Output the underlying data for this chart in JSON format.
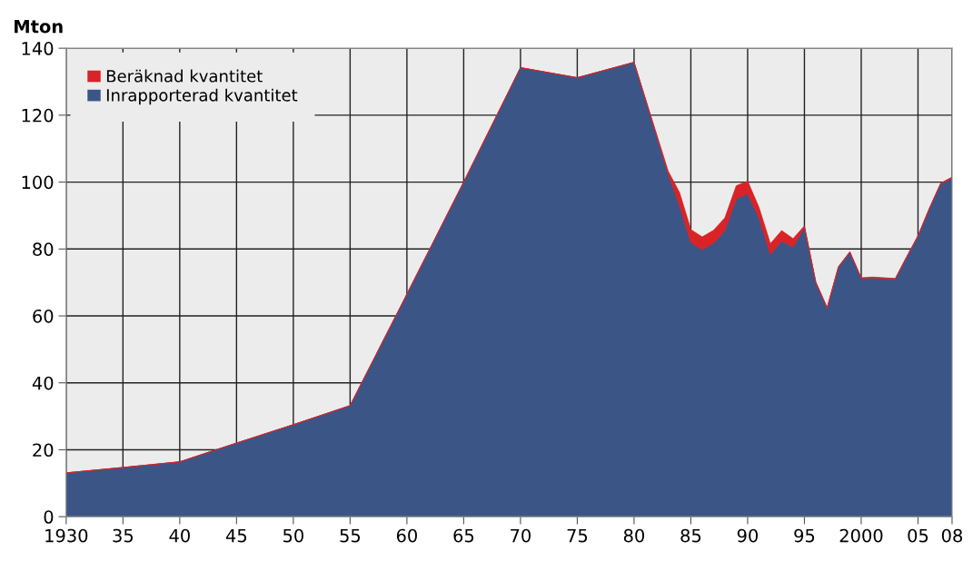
{
  "chart_data": {
    "type": "area",
    "stacked": true,
    "ylabel": "Mton",
    "x": [
      1930,
      1935,
      1940,
      1945,
      1950,
      1955,
      1960,
      1965,
      1970,
      1975,
      1980,
      1983,
      1984,
      1985,
      1986,
      1987,
      1988,
      1989,
      1990,
      1991,
      1992,
      1993,
      1994,
      1995,
      1996,
      1997,
      1998,
      1999,
      2000,
      2001,
      2002,
      2003,
      2004,
      2005,
      2006,
      2007,
      2008
    ],
    "series": [
      {
        "name": "Inrapporterad kvantitet",
        "color": "#3c5587",
        "values": [
          13.1,
          14.7,
          16.4,
          22.0,
          27.5,
          33.2,
          66.5,
          100.0,
          134.2,
          131.2,
          135.8,
          102.5,
          93.0,
          82.0,
          79.8,
          81.8,
          85.5,
          95.1,
          96.5,
          89.3,
          78.4,
          82.4,
          80.6,
          86.5,
          70.0,
          62.3,
          74.6,
          79.0,
          71.2,
          71.4,
          71.2,
          71.0,
          77.5,
          83.8,
          92.0,
          99.5,
          101.2
        ]
      },
      {
        "name": "Beräknad kvantitet",
        "color": "#d92326",
        "values": [
          0,
          0,
          0,
          0,
          0,
          0,
          0,
          0,
          0,
          0,
          0,
          0.8,
          3.9,
          3.8,
          3.8,
          3.8,
          3.8,
          3.8,
          3.8,
          3.1,
          3.2,
          3.1,
          2.5,
          0.4,
          0.2,
          0.2,
          0.2,
          0.2,
          0.2,
          0.2,
          0.2,
          0.2,
          0.2,
          0.2,
          0.2,
          0.2,
          0.3
        ]
      }
    ],
    "xlim": [
      1930,
      2008
    ],
    "xticks": [
      1930,
      {
        "value": 1935,
        "label": "35"
      },
      {
        "value": 1940,
        "label": "40"
      },
      {
        "value": 1945,
        "label": "45"
      },
      {
        "value": 1950,
        "label": "50"
      },
      {
        "value": 1955,
        "label": "55"
      },
      {
        "value": 1960,
        "label": "60"
      },
      {
        "value": 1965,
        "label": "65"
      },
      {
        "value": 1970,
        "label": "70"
      },
      {
        "value": 1975,
        "label": "75"
      },
      {
        "value": 1980,
        "label": "80"
      },
      {
        "value": 1985,
        "label": "85"
      },
      {
        "value": 1990,
        "label": "90"
      },
      {
        "value": 1995,
        "label": "95"
      },
      2000,
      {
        "value": 2005,
        "label": "05"
      },
      {
        "value": 2008,
        "label": "08"
      }
    ],
    "ylim": [
      0,
      140
    ],
    "yticks": [
      0,
      20,
      40,
      60,
      80,
      100,
      120,
      140
    ],
    "grid": true,
    "legend": "top left"
  }
}
